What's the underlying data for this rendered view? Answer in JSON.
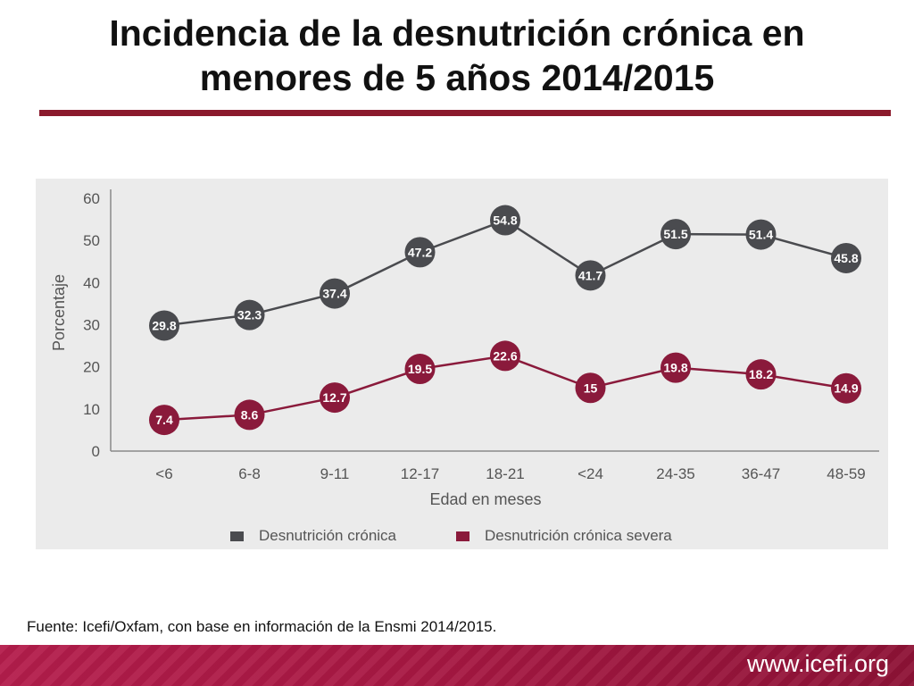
{
  "slide": {
    "title_line1": "Incidencia de la desnutrición crónica en",
    "title_line2": "menores de 5 años 2014/2015",
    "source": "Fuente: Icefi/Oxfam, con base en información de la Ensmi 2014/2015.",
    "footer_url": "www.icefi.org"
  },
  "chart_data": {
    "type": "line",
    "title": "",
    "xlabel": "Edad en meses",
    "ylabel": "Porcentaje",
    "categories": [
      "<6",
      "6-8",
      "9-11",
      "12-17",
      "18-21",
      "<24",
      "24-35",
      "36-47",
      "48-59"
    ],
    "ylim": [
      0,
      60
    ],
    "yticks": [
      0,
      10,
      20,
      30,
      40,
      50,
      60
    ],
    "grid": false,
    "legend_position": "bottom",
    "series": [
      {
        "name": "Desnutrición crónica",
        "color": "#4a4b4f",
        "values": [
          29.8,
          32.3,
          37.4,
          47.2,
          54.8,
          41.7,
          51.5,
          51.4,
          45.8
        ],
        "labels": [
          "29.8",
          "32.3",
          "37.4",
          "47.2",
          "54.8",
          "41.7",
          "51.5",
          "51.4",
          "45.8"
        ]
      },
      {
        "name": "Desnutrición crónica severa",
        "color": "#8a1a3b",
        "values": [
          7.4,
          8.6,
          12.7,
          19.5,
          22.6,
          15,
          19.8,
          18.2,
          14.9
        ],
        "labels": [
          "7.4",
          "8.6",
          "12.7",
          "19.5",
          "22.6",
          "15",
          "19.8",
          "18.2",
          "14.9"
        ]
      }
    ]
  }
}
